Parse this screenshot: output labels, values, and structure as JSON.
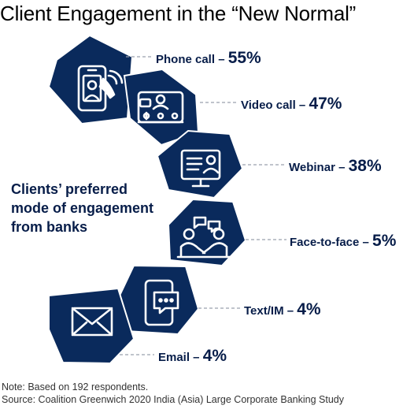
{
  "title": "Client Engagement in the “New Normal”",
  "subtitle_lines": [
    "Clients’ preferred",
    "mode of engagement",
    "from banks"
  ],
  "footnote": {
    "note": "Note: Based on 192 respondents.",
    "source": "Source: Coalition Greenwich 2020 India (Asia) Large Corporate Banking Study"
  },
  "colors": {
    "hex_fill": "#0a2a5c",
    "icon": "#ffffff",
    "text": "#071d49",
    "leader": "#9aa1ad"
  },
  "chart_data": {
    "type": "table",
    "categories": [
      "Phone call",
      "Video call",
      "Webinar",
      "Face-to-face",
      "Text/IM",
      "Email"
    ],
    "values": [
      55,
      47,
      38,
      5,
      4,
      4
    ],
    "value_format": "%",
    "items": [
      {
        "label": "Phone call",
        "value": 55,
        "value_text": "55%",
        "icon": "phone-call-icon"
      },
      {
        "label": "Video call",
        "value": 47,
        "value_text": "47%",
        "icon": "video-call-icon"
      },
      {
        "label": "Webinar",
        "value": 38,
        "value_text": "38%",
        "icon": "webinar-icon"
      },
      {
        "label": "Face-to-face",
        "value": 5,
        "value_text": "5%",
        "icon": "face-to-face-icon"
      },
      {
        "label": "Text/IM",
        "value": 4,
        "value_text": "4%",
        "icon": "text-message-icon"
      },
      {
        "label": "Email",
        "value": 4,
        "value_text": "4%",
        "icon": "email-icon"
      }
    ]
  }
}
